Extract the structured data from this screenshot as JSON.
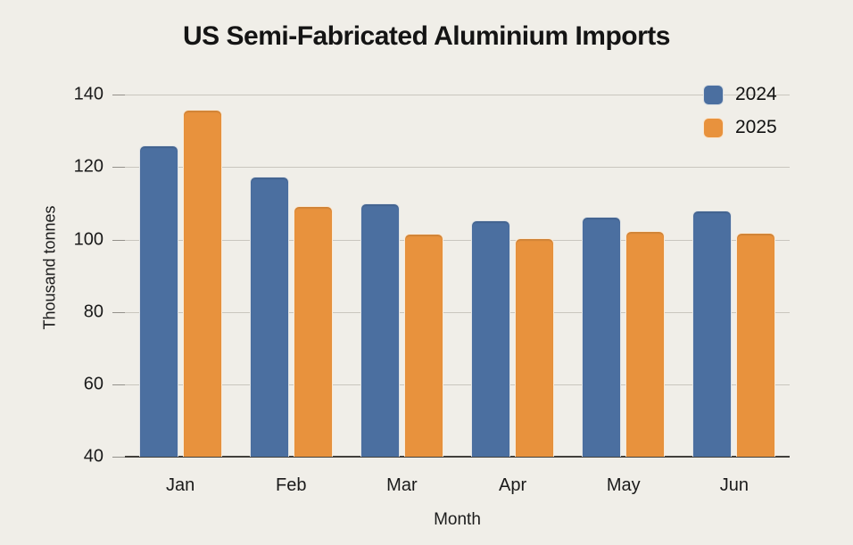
{
  "page": {
    "background_color": "#f0eee8"
  },
  "chart_data": {
    "type": "bar",
    "title": "US Semi-Fabricated Aluminium Imports",
    "xlabel": "Month",
    "ylabel": "Thousand tonnes",
    "categories": [
      "Jan",
      "Feb",
      "Mar",
      "Apr",
      "May",
      "Jun"
    ],
    "series": [
      {
        "name": "2024",
        "color": "#4b6fa0",
        "values": [
          126.0,
          117.3,
          110.0,
          105.3,
          106.4,
          108.1
        ]
      },
      {
        "name": "2025",
        "color": "#e8923d",
        "values": [
          135.8,
          109.2,
          101.5,
          100.3,
          102.3,
          101.8
        ]
      }
    ],
    "ylim": [
      40,
      144
    ],
    "yticks": [
      40,
      60,
      80,
      100,
      120,
      140
    ],
    "grid": true,
    "legend_position": "top-right",
    "gridline_color": "#c9c6be",
    "axis_line_color": "#413f3b"
  }
}
